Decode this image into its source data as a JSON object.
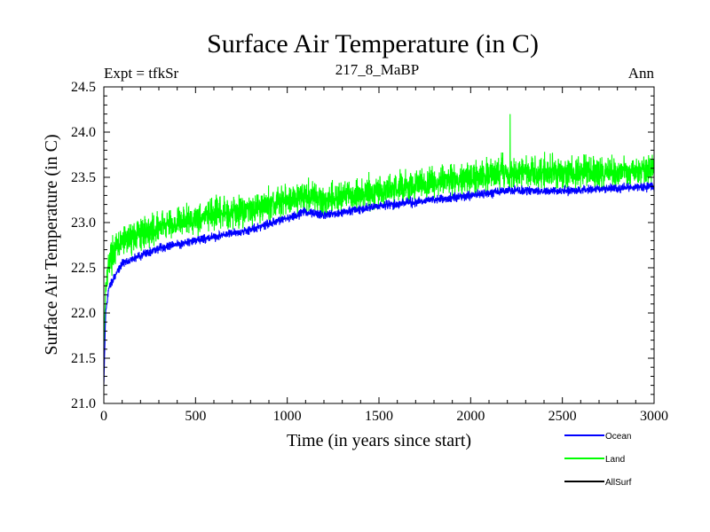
{
  "chart_data": {
    "type": "line",
    "title": "Surface Air Temperature (in C)",
    "subtitle": "217_8_MaBP",
    "left_label": "Expt = tfkSr",
    "right_label": "Ann",
    "xlabel": "Time (in years since start)",
    "ylabel": "Surface Air Temperature (in C)",
    "xlim": [
      0,
      3000
    ],
    "ylim": [
      21.0,
      24.5
    ],
    "x_ticks": [
      0,
      500,
      1000,
      1500,
      2000,
      2500,
      3000
    ],
    "y_ticks": [
      21.0,
      21.5,
      22.0,
      22.5,
      23.0,
      23.5,
      24.0,
      24.5
    ],
    "x_tick_labels": [
      "0",
      "500",
      "1000",
      "1500",
      "2000",
      "2500",
      "3000"
    ],
    "y_tick_labels": [
      "21.0",
      "21.5",
      "22.0",
      "22.5",
      "23.0",
      "23.5",
      "24.0",
      "24.5"
    ],
    "grid": false,
    "legend_position": "bottom-right, below plot",
    "series": [
      {
        "name": "Land",
        "color": "#00ff00",
        "trend_x": [
          0,
          10,
          30,
          100,
          300,
          500,
          800,
          1000,
          1100,
          1200,
          1500,
          2000,
          2200,
          2500,
          2800,
          3000
        ],
        "trend_y": [
          21.6,
          22.3,
          22.6,
          22.8,
          22.95,
          23.05,
          23.15,
          23.25,
          23.3,
          23.25,
          23.35,
          23.5,
          23.55,
          23.55,
          23.55,
          23.6
        ],
        "noise_amplitude": 0.25,
        "max_peak": {
          "x": 2215,
          "y": 24.2
        }
      },
      {
        "name": "Ocean",
        "color": "#0000ff",
        "trend_x": [
          0,
          10,
          30,
          100,
          300,
          500,
          800,
          1000,
          1100,
          1200,
          1500,
          2000,
          2200,
          2500,
          2800,
          3000
        ],
        "trend_y": [
          21.2,
          22.0,
          22.3,
          22.55,
          22.72,
          22.8,
          22.92,
          23.05,
          23.12,
          23.08,
          23.18,
          23.3,
          23.35,
          23.35,
          23.38,
          23.4
        ],
        "noise_amplitude": 0.07
      },
      {
        "name": "AllSurf",
        "color": "#000000",
        "trend_x": [
          0,
          10,
          30,
          100,
          300,
          500,
          800,
          1000,
          1100,
          1200,
          1500,
          2000,
          2200,
          2500,
          2800,
          3000
        ],
        "trend_y": [
          21.3,
          22.05,
          22.35,
          22.6,
          22.77,
          22.85,
          22.97,
          23.1,
          23.16,
          23.12,
          23.22,
          23.35,
          23.4,
          23.4,
          23.42,
          23.45
        ],
        "noise_amplitude": 0.06,
        "visible": false
      }
    ]
  }
}
